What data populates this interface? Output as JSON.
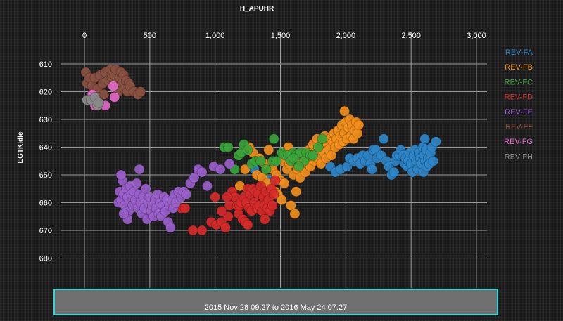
{
  "chart_data": {
    "type": "scatter",
    "title": "H_APUHR",
    "xlabel": "",
    "ylabel": "EGTKidle",
    "xlim": [
      0,
      3000
    ],
    "ylim": [
      605,
      684
    ],
    "y_inverted": true,
    "x_axis_position": "top",
    "grid": true,
    "legend_position": "right",
    "x_ticks": [
      0,
      500,
      1000,
      1500,
      2000,
      2500,
      3000
    ],
    "x_tick_labels": [
      "0",
      "500",
      "1,000",
      "1,500",
      "2,000",
      "2,500",
      "3,000"
    ],
    "y_ticks": [
      610,
      620,
      630,
      640,
      650,
      660,
      670,
      680
    ],
    "y_tick_labels": [
      "610",
      "620",
      "630",
      "640",
      "650",
      "660",
      "670",
      "680"
    ],
    "series": [
      {
        "name": "REV-FA",
        "color": "#2e86c8",
        "points": [
          [
            1880,
            647
          ],
          [
            1920,
            649
          ],
          [
            1960,
            648
          ],
          [
            2010,
            647
          ],
          [
            2030,
            644
          ],
          [
            2060,
            645
          ],
          [
            2090,
            644
          ],
          [
            2110,
            646
          ],
          [
            2130,
            643
          ],
          [
            2150,
            645
          ],
          [
            2170,
            643
          ],
          [
            2190,
            646
          ],
          [
            2200,
            648
          ],
          [
            2210,
            641
          ],
          [
            2230,
            641
          ],
          [
            2240,
            644
          ],
          [
            2270,
            643
          ],
          [
            2290,
            637
          ],
          [
            2310,
            645
          ],
          [
            2330,
            647
          ],
          [
            2350,
            650
          ],
          [
            2370,
            649
          ],
          [
            2380,
            645
          ],
          [
            2390,
            643
          ],
          [
            2410,
            643
          ],
          [
            2420,
            641
          ],
          [
            2440,
            643
          ],
          [
            2450,
            646
          ],
          [
            2460,
            644
          ],
          [
            2470,
            647
          ],
          [
            2480,
            645
          ],
          [
            2490,
            642
          ],
          [
            2500,
            646
          ],
          [
            2510,
            649
          ],
          [
            2520,
            643
          ],
          [
            2530,
            641
          ],
          [
            2540,
            645
          ],
          [
            2550,
            648
          ],
          [
            2560,
            642
          ],
          [
            2570,
            644
          ],
          [
            2580,
            646
          ],
          [
            2590,
            640
          ],
          [
            2595,
            649
          ],
          [
            2600,
            643
          ],
          [
            2605,
            637
          ],
          [
            2610,
            645
          ],
          [
            2615,
            641
          ],
          [
            2620,
            647
          ],
          [
            2630,
            644
          ],
          [
            2640,
            646
          ],
          [
            2650,
            642
          ],
          [
            2660,
            640
          ],
          [
            2670,
            645
          ],
          [
            2690,
            638
          ],
          [
            1300,
            648
          ],
          [
            1420,
            652
          ]
        ]
      },
      {
        "name": "REV-FB",
        "color": "#f18e1b",
        "points": [
          [
            1190,
            654
          ],
          [
            1230,
            648
          ],
          [
            1260,
            640
          ],
          [
            1290,
            642
          ],
          [
            1320,
            650
          ],
          [
            1340,
            644
          ],
          [
            1360,
            651
          ],
          [
            1380,
            646
          ],
          [
            1400,
            653
          ],
          [
            1410,
            641
          ],
          [
            1430,
            655
          ],
          [
            1440,
            648
          ],
          [
            1460,
            656
          ],
          [
            1470,
            650
          ],
          [
            1480,
            657
          ],
          [
            1500,
            652
          ],
          [
            1510,
            659
          ],
          [
            1520,
            645
          ],
          [
            1530,
            653
          ],
          [
            1540,
            642
          ],
          [
            1550,
            648
          ],
          [
            1560,
            640
          ],
          [
            1570,
            646
          ],
          [
            1580,
            661
          ],
          [
            1590,
            644
          ],
          [
            1600,
            650
          ],
          [
            1610,
            664
          ],
          [
            1620,
            656
          ],
          [
            1630,
            648
          ],
          [
            1640,
            643
          ],
          [
            1650,
            651
          ],
          [
            1660,
            645
          ],
          [
            1670,
            647
          ],
          [
            1680,
            642
          ],
          [
            1690,
            649
          ],
          [
            1700,
            644
          ],
          [
            1710,
            646
          ],
          [
            1720,
            641
          ],
          [
            1730,
            647
          ],
          [
            1740,
            643
          ],
          [
            1750,
            639
          ],
          [
            1760,
            645
          ],
          [
            1770,
            642
          ],
          [
            1780,
            637
          ],
          [
            1790,
            644
          ],
          [
            1800,
            641
          ],
          [
            1810,
            646
          ],
          [
            1820,
            638
          ],
          [
            1830,
            642
          ],
          [
            1840,
            636
          ],
          [
            1850,
            644
          ],
          [
            1860,
            639
          ],
          [
            1870,
            641
          ],
          [
            1880,
            637
          ],
          [
            1890,
            643
          ],
          [
            1900,
            638
          ],
          [
            1910,
            635
          ],
          [
            1920,
            640
          ],
          [
            1930,
            637
          ],
          [
            1940,
            634
          ],
          [
            1950,
            639
          ],
          [
            1960,
            636
          ],
          [
            1970,
            632
          ],
          [
            1980,
            638
          ],
          [
            1990,
            635
          ],
          [
            2000,
            631
          ],
          [
            2010,
            637
          ],
          [
            2020,
            633
          ],
          [
            2030,
            630
          ],
          [
            2040,
            636
          ],
          [
            2050,
            632
          ],
          [
            2060,
            637
          ],
          [
            2070,
            634
          ],
          [
            2080,
            631
          ],
          [
            2090,
            635
          ],
          [
            2100,
            632
          ],
          [
            1990,
            627
          ]
        ]
      },
      {
        "name": "REV-FC",
        "color": "#3aa33a",
        "points": [
          [
            1070,
            640
          ],
          [
            1100,
            640
          ],
          [
            1150,
            648
          ],
          [
            1180,
            643
          ],
          [
            1200,
            642
          ],
          [
            1220,
            639
          ],
          [
            1250,
            641
          ],
          [
            1280,
            646
          ],
          [
            1310,
            645
          ],
          [
            1350,
            645
          ],
          [
            1390,
            648
          ],
          [
            1440,
            645
          ],
          [
            1450,
            637
          ],
          [
            1470,
            645
          ],
          [
            1510,
            642
          ],
          [
            1540,
            643
          ],
          [
            1560,
            643
          ],
          [
            1580,
            645
          ],
          [
            1600,
            642
          ],
          [
            1620,
            643
          ],
          [
            1650,
            642
          ],
          [
            1680,
            645
          ],
          [
            1700,
            642
          ],
          [
            1730,
            643
          ],
          [
            1750,
            643
          ],
          [
            1790,
            640
          ],
          [
            1820,
            637
          ],
          [
            1640,
            647
          ],
          [
            1600,
            644
          ]
        ]
      },
      {
        "name": "REV-FD",
        "color": "#d62a2a",
        "points": [
          [
            740,
            662
          ],
          [
            770,
            662
          ],
          [
            830,
            670
          ],
          [
            900,
            670
          ],
          [
            970,
            667
          ],
          [
            1010,
            668
          ],
          [
            1050,
            667
          ],
          [
            1080,
            669
          ],
          [
            1100,
            665
          ],
          [
            1110,
            661
          ],
          [
            1130,
            656
          ],
          [
            1150,
            658
          ],
          [
            1170,
            661
          ],
          [
            1180,
            664
          ],
          [
            1190,
            661
          ],
          [
            1200,
            660
          ],
          [
            1210,
            666
          ],
          [
            1220,
            658
          ],
          [
            1230,
            667
          ],
          [
            1240,
            660
          ],
          [
            1250,
            655
          ],
          [
            1260,
            662
          ],
          [
            1270,
            657
          ],
          [
            1280,
            663
          ],
          [
            1290,
            655
          ],
          [
            1300,
            660
          ],
          [
            1310,
            656
          ],
          [
            1320,
            662
          ],
          [
            1330,
            657
          ],
          [
            1340,
            661
          ],
          [
            1350,
            654
          ],
          [
            1360,
            663
          ],
          [
            1370,
            658
          ],
          [
            1380,
            661
          ],
          [
            1390,
            656
          ],
          [
            1400,
            662
          ],
          [
            1410,
            659
          ],
          [
            1420,
            663
          ],
          [
            1430,
            655
          ],
          [
            1440,
            661
          ],
          [
            1450,
            657
          ],
          [
            1460,
            652
          ],
          [
            1000,
            658
          ],
          [
            1050,
            663
          ],
          [
            1090,
            658
          ],
          [
            1250,
            668
          ],
          [
            1380,
            666
          ]
        ]
      },
      {
        "name": "REV-FE",
        "color": "#9a5fcb",
        "points": [
          [
            260,
            660
          ],
          [
            270,
            656
          ],
          [
            280,
            659
          ],
          [
            290,
            652
          ],
          [
            300,
            657
          ],
          [
            310,
            661
          ],
          [
            320,
            655
          ],
          [
            330,
            658
          ],
          [
            340,
            663
          ],
          [
            350,
            654
          ],
          [
            360,
            657
          ],
          [
            370,
            661
          ],
          [
            380,
            656
          ],
          [
            390,
            659
          ],
          [
            400,
            653
          ],
          [
            410,
            662
          ],
          [
            420,
            657
          ],
          [
            430,
            660
          ],
          [
            440,
            664
          ],
          [
            450,
            658
          ],
          [
            460,
            662
          ],
          [
            470,
            655
          ],
          [
            480,
            666
          ],
          [
            490,
            660
          ],
          [
            500,
            658
          ],
          [
            510,
            663
          ],
          [
            520,
            661
          ],
          [
            530,
            665
          ],
          [
            540,
            659
          ],
          [
            550,
            662
          ],
          [
            560,
            657
          ],
          [
            570,
            664
          ],
          [
            580,
            660
          ],
          [
            590,
            665
          ],
          [
            600,
            661
          ],
          [
            610,
            658
          ],
          [
            620,
            663
          ],
          [
            630,
            659
          ],
          [
            640,
            667
          ],
          [
            650,
            661
          ],
          [
            660,
            669
          ],
          [
            670,
            659
          ],
          [
            680,
            662
          ],
          [
            690,
            657
          ],
          [
            700,
            660
          ],
          [
            720,
            656
          ],
          [
            740,
            658
          ],
          [
            760,
            656
          ],
          [
            780,
            657
          ],
          [
            810,
            653
          ],
          [
            840,
            651
          ],
          [
            870,
            648
          ],
          [
            900,
            649
          ],
          [
            940,
            654
          ],
          [
            990,
            647
          ],
          [
            1040,
            648
          ],
          [
            1110,
            646
          ],
          [
            330,
            666
          ],
          [
            280,
            650
          ],
          [
            300,
            664
          ],
          [
            420,
            648
          ]
        ]
      },
      {
        "name": "REV-FF",
        "color": "#8a5142",
        "points": [
          [
            10,
            613
          ],
          [
            20,
            617
          ],
          [
            40,
            615
          ],
          [
            60,
            618
          ],
          [
            80,
            615
          ],
          [
            100,
            619
          ],
          [
            120,
            614
          ],
          [
            140,
            617
          ],
          [
            160,
            613
          ],
          [
            180,
            616
          ],
          [
            200,
            612
          ],
          [
            210,
            615
          ],
          [
            220,
            618
          ],
          [
            230,
            614
          ],
          [
            240,
            612
          ],
          [
            250,
            616
          ],
          [
            260,
            620
          ],
          [
            270,
            615
          ],
          [
            280,
            613
          ],
          [
            290,
            617
          ],
          [
            300,
            614
          ],
          [
            310,
            619
          ],
          [
            320,
            616
          ],
          [
            330,
            620
          ],
          [
            340,
            617
          ],
          [
            350,
            618
          ],
          [
            380,
            620
          ],
          [
            410,
            621
          ],
          [
            430,
            620
          ],
          [
            150,
            621
          ],
          [
            60,
            622
          ]
        ]
      },
      {
        "name": "REV-FG",
        "color": "#e268c8",
        "points": [
          [
            220,
            618
          ],
          [
            230,
            622
          ],
          [
            160,
            625
          ],
          [
            80,
            625
          ],
          [
            60,
            621
          ]
        ]
      },
      {
        "name": "REV-FH",
        "color": "#8a8a8a",
        "points": [
          [
            20,
            623
          ],
          [
            50,
            623
          ],
          [
            80,
            622
          ],
          [
            100,
            625
          ],
          [
            110,
            624
          ]
        ]
      }
    ]
  },
  "time_range": "2015 Nov 28 09:27 to 2016 May 24 07:27"
}
